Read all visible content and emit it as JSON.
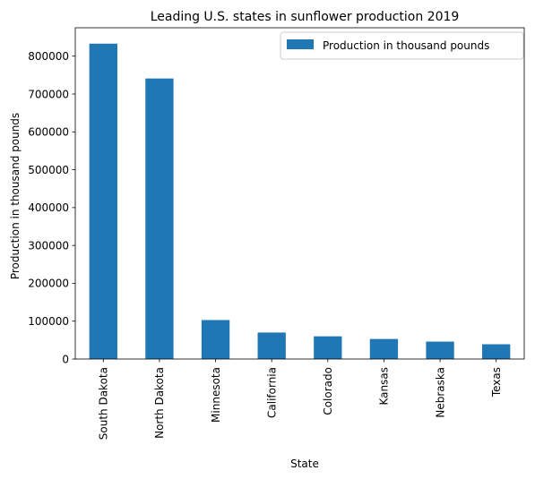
{
  "chart_data": {
    "type": "bar",
    "title": "Leading U.S. states in sunflower production 2019",
    "xlabel": "State",
    "ylabel": "Production in thousand pounds",
    "categories": [
      "South Dakota",
      "North Dakota",
      "Minnesota",
      "California",
      "Colorado",
      "Kansas",
      "Nebraska",
      "Texas"
    ],
    "series": [
      {
        "name": "Production in thousand pounds",
        "values": [
          833000,
          741000,
          103000,
          70000,
          60000,
          53000,
          46000,
          39000
        ]
      }
    ],
    "ylim": [
      0,
      875000
    ],
    "yticks": [
      0,
      100000,
      200000,
      300000,
      400000,
      500000,
      600000,
      700000,
      800000
    ],
    "ytick_labels": [
      "0",
      "100000",
      "200000",
      "300000",
      "400000",
      "500000",
      "600000",
      "700000",
      "800000"
    ],
    "bar_color": "#1f77b4",
    "grid": false,
    "legend_position": "top-right"
  }
}
